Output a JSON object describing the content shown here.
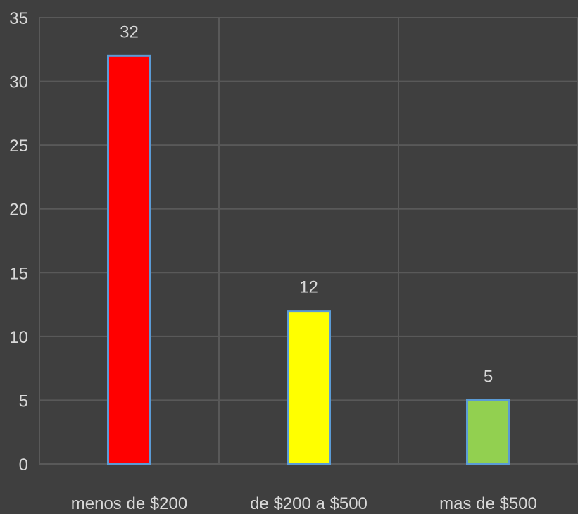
{
  "chart_data": {
    "type": "bar",
    "categories": [
      "menos de $200",
      "de $200 a $500",
      "mas de $500"
    ],
    "values": [
      32,
      12,
      5
    ],
    "data_labels": [
      "32",
      "12",
      "5"
    ],
    "ylim": [
      0,
      35
    ],
    "yticks": [
      0,
      5,
      10,
      15,
      20,
      25,
      30,
      35
    ],
    "ytick_labels": [
      "0",
      "5",
      "10",
      "15",
      "20",
      "25",
      "30",
      "35"
    ],
    "bar_colors": [
      "#ff0000",
      "#ffff00",
      "#92d050"
    ],
    "bar_outline_color": "#5b9bd5",
    "background_color": "#3f3f3f",
    "grid": true,
    "legend": false
  }
}
